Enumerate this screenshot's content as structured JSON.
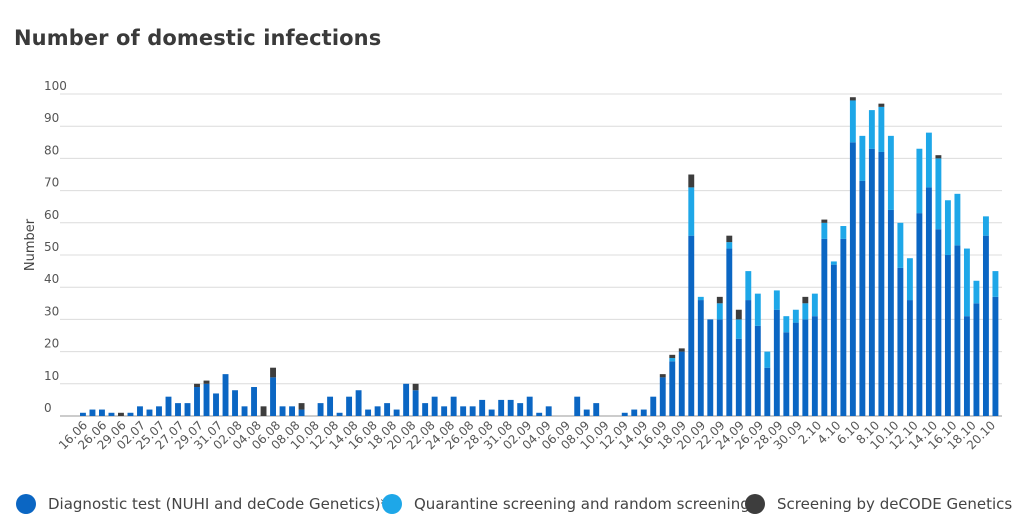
{
  "title": "Number of domestic infections",
  "legend": [
    {
      "label": "Diagnostic test (NUHI and deCode Genetics)*",
      "color": "#0b66c3"
    },
    {
      "label": "Quarantine screening and random screening",
      "color": "#1ea7e8"
    },
    {
      "label": "Screening by deCODE Genetics",
      "color": "#3d3d3d"
    }
  ],
  "chart_data": {
    "type": "bar",
    "stacked": true,
    "title": "Number of domestic infections",
    "ylabel": "Number",
    "xlabel": "",
    "ylim": [
      0,
      100
    ],
    "yticks": [
      0,
      10,
      20,
      30,
      40,
      50,
      60,
      70,
      80,
      90,
      100
    ],
    "grid": true,
    "legend_position": "bottom",
    "x_tick_labels": [
      "16.06",
      "26.06",
      "29.06",
      "02.07",
      "25.07",
      "27.07",
      "29.07",
      "31.07",
      "02.08",
      "04.08",
      "06.08",
      "08.08",
      "10.08",
      "12.08",
      "14.08",
      "16.08",
      "18.08",
      "20.08",
      "22.08",
      "24.08",
      "26.08",
      "28.08",
      "31.08",
      "02.09",
      "04.09",
      "06.09",
      "08.09",
      "10.09",
      "12.09",
      "14.09",
      "16.09",
      "18.09",
      "20.09",
      "22.09",
      "24.09",
      "26.09",
      "28.09",
      "30.09",
      "2.10",
      "4.10",
      "6.10",
      "8.10",
      "10.10",
      "12.10",
      "14.10",
      "16.10",
      "18.10",
      "20.10"
    ],
    "series": [
      {
        "name": "Diagnostic test (NUHI and deCode Genetics)*",
        "values": [
          1,
          2,
          2,
          1,
          0,
          1,
          3,
          2,
          3,
          6,
          4,
          4,
          9,
          10,
          7,
          13,
          8,
          3,
          9,
          0,
          12,
          3,
          3,
          2,
          0,
          4,
          6,
          1,
          6,
          8,
          2,
          3,
          4,
          2,
          10,
          8,
          4,
          6,
          3,
          6,
          3,
          3,
          5,
          2,
          5,
          5,
          4,
          6,
          1,
          3,
          0,
          0,
          6,
          2,
          4,
          0,
          0,
          1,
          2,
          2,
          6,
          12,
          17,
          20,
          56,
          36,
          30,
          30,
          52,
          24,
          36,
          28,
          15,
          33,
          26,
          29,
          30,
          31,
          55,
          47,
          55,
          85,
          73,
          83,
          82,
          64,
          46,
          36,
          63,
          71,
          58,
          50,
          53,
          31,
          35,
          56,
          37
        ]
      },
      {
        "name": "Quarantine screening and random screening",
        "values": [
          0,
          0,
          0,
          0,
          0,
          0,
          0,
          0,
          0,
          0,
          0,
          0,
          0,
          0,
          0,
          0,
          0,
          0,
          0,
          0,
          0,
          0,
          0,
          0,
          0,
          0,
          0,
          0,
          0,
          0,
          0,
          0,
          0,
          0,
          0,
          0,
          0,
          0,
          0,
          0,
          0,
          0,
          0,
          0,
          0,
          0,
          0,
          0,
          0,
          0,
          0,
          0,
          0,
          0,
          0,
          0,
          0,
          0,
          0,
          0,
          0,
          0,
          1,
          0,
          15,
          1,
          0,
          5,
          2,
          6,
          9,
          10,
          5,
          6,
          5,
          4,
          5,
          7,
          5,
          1,
          4,
          13,
          14,
          12,
          14,
          23,
          14,
          13,
          20,
          17,
          22,
          17,
          16,
          21,
          7,
          6,
          8
        ]
      },
      {
        "name": "Screening by deCODE Genetics",
        "values": [
          0,
          0,
          0,
          0,
          1,
          0,
          0,
          0,
          0,
          0,
          0,
          0,
          1,
          1,
          0,
          0,
          0,
          0,
          0,
          3,
          3,
          0,
          0,
          2,
          0,
          0,
          0,
          0,
          0,
          0,
          0,
          0,
          0,
          0,
          0,
          2,
          0,
          0,
          0,
          0,
          0,
          0,
          0,
          0,
          0,
          0,
          0,
          0,
          0,
          0,
          0,
          0,
          0,
          0,
          0,
          0,
          0,
          0,
          0,
          0,
          0,
          1,
          1,
          1,
          4,
          0,
          0,
          2,
          2,
          3,
          0,
          0,
          0,
          0,
          0,
          0,
          2,
          0,
          1,
          0,
          0,
          1,
          0,
          0,
          1,
          0,
          0,
          0,
          0,
          0,
          1,
          0,
          0,
          0,
          0,
          0,
          0
        ]
      }
    ]
  }
}
